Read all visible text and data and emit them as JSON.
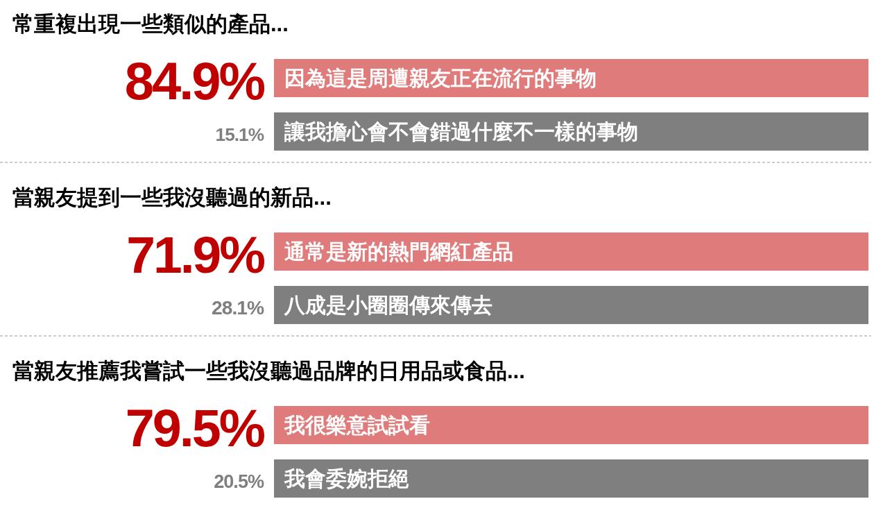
{
  "chart_data": [
    {
      "type": "other",
      "title": "常重複出現一些類似的產品...",
      "categories": [
        "因為這是周遭親友正在流行的事物",
        "讓我擔心會不會錯過什麼不一樣的事物"
      ],
      "values": [
        84.9,
        15.1
      ],
      "value_labels": [
        "84.9%",
        "15.1%"
      ],
      "colors": [
        "#e07b7b",
        "#7f7f7f"
      ]
    },
    {
      "type": "other",
      "title": "當親友提到一些我沒聽過的新品...",
      "categories": [
        "通常是新的熱門網紅產品",
        "八成是小圈圈傳來傳去"
      ],
      "values": [
        71.9,
        28.1
      ],
      "value_labels": [
        "71.9%",
        "28.1%"
      ],
      "colors": [
        "#e07b7b",
        "#7f7f7f"
      ]
    },
    {
      "type": "other",
      "title": "當親友推薦我嘗試一些我沒聽過品牌的日用品或食品...",
      "categories": [
        "我很樂意試試看",
        "我會委婉拒絕"
      ],
      "values": [
        79.5,
        20.5
      ],
      "value_labels": [
        "79.5%",
        "20.5%"
      ],
      "colors": [
        "#e07b7b",
        "#7f7f7f"
      ]
    }
  ]
}
